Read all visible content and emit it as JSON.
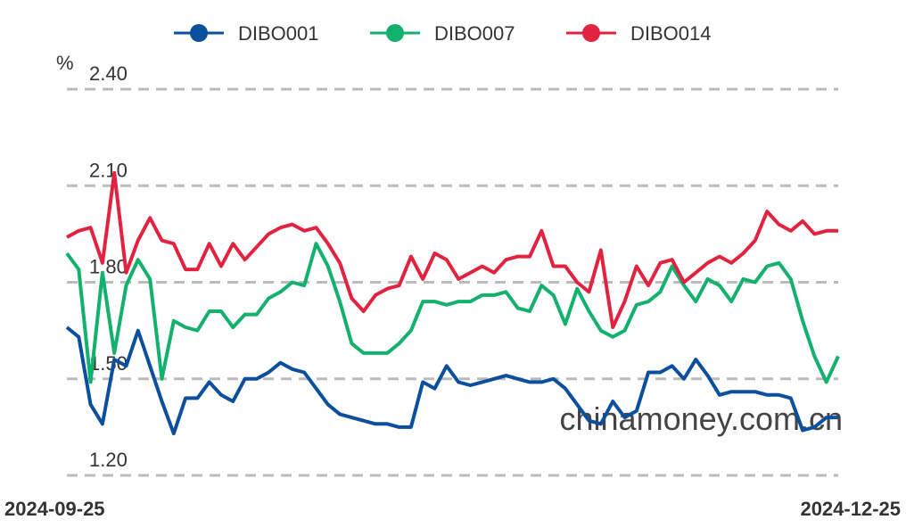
{
  "chart_data": {
    "type": "line",
    "y_unit": "%",
    "watermark": "chinamoney.com.cn",
    "categories": [
      "2024-09-25",
      null,
      null,
      null,
      null,
      null,
      null,
      null,
      null,
      null,
      null,
      null,
      null,
      null,
      null,
      null,
      null,
      null,
      null,
      null,
      null,
      null,
      null,
      null,
      null,
      null,
      null,
      null,
      null,
      null,
      null,
      null,
      null,
      null,
      null,
      null,
      null,
      null,
      null,
      null,
      null,
      null,
      null,
      null,
      null,
      null,
      null,
      null,
      null,
      null,
      null,
      null,
      null,
      null,
      null,
      null,
      null,
      null,
      null,
      null,
      null,
      null,
      null,
      null,
      null,
      "2024-12-25"
    ],
    "series": [
      {
        "name": "DIBO001",
        "color": "#0b4f9e",
        "values": [
          1.66,
          1.63,
          1.42,
          1.36,
          1.56,
          1.54,
          1.65,
          1.54,
          1.43,
          1.33,
          1.44,
          1.44,
          1.49,
          1.45,
          1.43,
          1.5,
          1.5,
          1.52,
          1.55,
          1.53,
          1.52,
          1.47,
          1.42,
          1.39,
          1.38,
          1.37,
          1.36,
          1.36,
          1.35,
          1.35,
          1.49,
          1.47,
          1.54,
          1.49,
          1.48,
          1.49,
          1.5,
          1.51,
          1.5,
          1.49,
          1.49,
          1.5,
          1.47,
          1.42,
          1.37,
          1.36,
          1.43,
          1.38,
          1.4,
          1.52,
          1.52,
          1.54,
          1.5,
          1.56,
          1.51,
          1.45,
          1.46,
          1.46,
          1.46,
          1.45,
          1.45,
          1.44,
          1.34,
          1.35,
          1.38,
          1.38
        ]
      },
      {
        "name": "DIBO007",
        "color": "#14b06e",
        "values": [
          1.89,
          1.84,
          1.49,
          1.83,
          1.58,
          1.79,
          1.87,
          1.81,
          1.5,
          1.68,
          1.66,
          1.65,
          1.71,
          1.71,
          1.66,
          1.7,
          1.7,
          1.75,
          1.77,
          1.8,
          1.79,
          1.92,
          1.85,
          1.74,
          1.61,
          1.58,
          1.58,
          1.58,
          1.61,
          1.65,
          1.74,
          1.74,
          1.73,
          1.74,
          1.74,
          1.76,
          1.76,
          1.77,
          1.72,
          1.71,
          1.79,
          1.76,
          1.67,
          1.78,
          1.71,
          1.65,
          1.63,
          1.65,
          1.73,
          1.74,
          1.77,
          1.85,
          1.79,
          1.74,
          1.81,
          1.79,
          1.74,
          1.81,
          1.8,
          1.85,
          1.86,
          1.81,
          1.68,
          1.57,
          1.49,
          1.57
        ]
      },
      {
        "name": "DIBO014",
        "color": "#e2233f",
        "values": [
          1.94,
          1.96,
          1.97,
          1.86,
          2.14,
          1.83,
          1.93,
          2.0,
          1.93,
          1.92,
          1.84,
          1.84,
          1.92,
          1.85,
          1.92,
          1.87,
          1.91,
          1.95,
          1.97,
          1.98,
          1.96,
          1.97,
          1.92,
          1.86,
          1.75,
          1.71,
          1.76,
          1.78,
          1.79,
          1.88,
          1.81,
          1.89,
          1.87,
          1.81,
          1.83,
          1.85,
          1.83,
          1.87,
          1.88,
          1.88,
          1.96,
          1.85,
          1.85,
          1.8,
          1.77,
          1.9,
          1.66,
          1.74,
          1.85,
          1.79,
          1.86,
          1.87,
          1.8,
          1.83,
          1.86,
          1.88,
          1.86,
          1.89,
          1.93,
          2.02,
          1.98,
          1.96,
          1.99,
          1.95,
          1.96,
          1.96
        ]
      }
    ],
    "ylim": [
      1.2,
      2.4
    ],
    "yticks": [
      {
        "value": 1.2,
        "label": "1.20"
      },
      {
        "value": 1.5,
        "label": "1.50"
      },
      {
        "value": 1.8,
        "label": "1.80"
      },
      {
        "value": 2.1,
        "label": "2.10"
      },
      {
        "value": 2.4,
        "label": "2.40"
      }
    ],
    "grid": true
  }
}
